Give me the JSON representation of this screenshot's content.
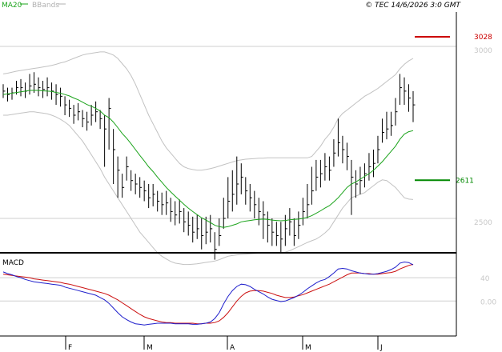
{
  "legend": [
    {
      "label": "MA20",
      "color": "#1aa31a"
    },
    {
      "label": "BBands",
      "color": "#b0b0b0"
    }
  ],
  "copyright": "© TEC 14/6/2026 3:0 GMT",
  "macd_label": "MACD",
  "colors": {
    "price": "#000000",
    "ma20": "#1aa31a",
    "bbands": "#c2c2c2",
    "resistance": "#cc0000",
    "support": "#008800",
    "macd": "#1f1fcc",
    "signal": "#cc1111",
    "axis": "#000000",
    "grid": "#cfcfcf"
  },
  "chart_data": {
    "type": "line",
    "x_ticks": [
      "F",
      "M",
      "A",
      "M",
      "J"
    ],
    "price_panel": {
      "ylim": [
        2400,
        3100
      ],
      "y_ticks": [
        {
          "value": 3000,
          "label": "3000"
        },
        {
          "value": 2500,
          "label": "2500"
        }
      ],
      "resistance": {
        "value": 3028,
        "label": "3028"
      },
      "support": {
        "value": 2611,
        "label": "2611"
      },
      "closes": [
        2870,
        2860,
        2865,
        2880,
        2880,
        2870,
        2885,
        2890,
        2880,
        2875,
        2880,
        2870,
        2860,
        2855,
        2830,
        2820,
        2800,
        2810,
        2790,
        2780,
        2800,
        2810,
        2790,
        2760,
        2820,
        2700,
        2640,
        2590,
        2650,
        2610,
        2600,
        2590,
        2580,
        2560,
        2570,
        2550,
        2540,
        2545,
        2520,
        2510,
        2520,
        2490,
        2480,
        2460,
        2470,
        2450,
        2460,
        2470,
        2410,
        2450,
        2500,
        2550,
        2570,
        2600,
        2620,
        2580,
        2560,
        2540,
        2520,
        2510,
        2480,
        2460,
        2450,
        2440,
        2470,
        2490,
        2450,
        2480,
        2520,
        2540,
        2580,
        2620,
        2630,
        2650,
        2640,
        2690,
        2720,
        2700,
        2680,
        2620,
        2600,
        2610,
        2630,
        2650,
        2660,
        2700,
        2750,
        2760,
        2770,
        2810,
        2880,
        2870,
        2850,
        2830
      ],
      "highs": [
        2890,
        2880,
        2880,
        2900,
        2905,
        2895,
        2920,
        2925,
        2910,
        2900,
        2910,
        2895,
        2890,
        2880,
        2855,
        2845,
        2830,
        2835,
        2815,
        2810,
        2830,
        2840,
        2815,
        2800,
        2850,
        2760,
        2680,
        2630,
        2680,
        2640,
        2630,
        2620,
        2610,
        2600,
        2600,
        2580,
        2575,
        2580,
        2560,
        2550,
        2555,
        2530,
        2520,
        2505,
        2510,
        2500,
        2505,
        2510,
        2460,
        2500,
        2560,
        2620,
        2640,
        2680,
        2660,
        2620,
        2600,
        2580,
        2560,
        2550,
        2520,
        2500,
        2490,
        2490,
        2510,
        2530,
        2500,
        2520,
        2560,
        2600,
        2650,
        2670,
        2670,
        2690,
        2680,
        2730,
        2790,
        2740,
        2720,
        2670,
        2640,
        2650,
        2660,
        2690,
        2700,
        2740,
        2790,
        2810,
        2810,
        2850,
        2920,
        2910,
        2890,
        2870
      ],
      "lows": [
        2850,
        2840,
        2845,
        2860,
        2855,
        2850,
        2860,
        2865,
        2855,
        2850,
        2855,
        2845,
        2830,
        2825,
        2800,
        2795,
        2775,
        2785,
        2765,
        2755,
        2770,
        2780,
        2760,
        2650,
        2700,
        2600,
        2560,
        2560,
        2610,
        2580,
        2570,
        2560,
        2550,
        2530,
        2535,
        2520,
        2510,
        2510,
        2490,
        2480,
        2485,
        2460,
        2450,
        2430,
        2440,
        2410,
        2425,
        2430,
        2380,
        2420,
        2470,
        2500,
        2520,
        2540,
        2570,
        2540,
        2520,
        2500,
        2480,
        2440,
        2430,
        2420,
        2420,
        2400,
        2420,
        2450,
        2420,
        2440,
        2480,
        2500,
        2540,
        2580,
        2590,
        2610,
        2610,
        2650,
        2680,
        2660,
        2640,
        2510,
        2560,
        2570,
        2590,
        2610,
        2620,
        2660,
        2720,
        2730,
        2740,
        2770,
        2830,
        2830,
        2810,
        2780
      ],
      "ma20": [
        2860,
        2862,
        2864,
        2866,
        2868,
        2870,
        2872,
        2872,
        2872,
        2871,
        2870,
        2869,
        2866,
        2864,
        2860,
        2856,
        2850,
        2845,
        2838,
        2831,
        2826,
        2820,
        2812,
        2800,
        2793,
        2780,
        2764,
        2747,
        2733,
        2717,
        2700,
        2683,
        2667,
        2650,
        2636,
        2620,
        2605,
        2590,
        2577,
        2565,
        2553,
        2541,
        2530,
        2520,
        2511,
        2502,
        2495,
        2488,
        2480,
        2476,
        2474,
        2476,
        2480,
        2484,
        2490,
        2492,
        2494,
        2496,
        2497,
        2498,
        2497,
        2495,
        2494,
        2493,
        2494,
        2496,
        2497,
        2498,
        2500,
        2503,
        2508,
        2515,
        2522,
        2530,
        2537,
        2548,
        2560,
        2575,
        2590,
        2600,
        2606,
        2614,
        2622,
        2630,
        2640,
        2652,
        2665,
        2680,
        2695,
        2710,
        2730,
        2745,
        2752,
        2755
      ],
      "bb_upper": [
        2920,
        2922,
        2925,
        2928,
        2930,
        2932,
        2934,
        2936,
        2938,
        2940,
        2942,
        2945,
        2948,
        2952,
        2955,
        2960,
        2965,
        2970,
        2975,
        2978,
        2980,
        2982,
        2984,
        2984,
        2980,
        2975,
        2965,
        2950,
        2935,
        2915,
        2890,
        2860,
        2830,
        2800,
        2775,
        2750,
        2725,
        2705,
        2690,
        2675,
        2660,
        2650,
        2645,
        2642,
        2640,
        2640,
        2642,
        2645,
        2648,
        2652,
        2656,
        2660,
        2664,
        2668,
        2670,
        2672,
        2673,
        2674,
        2675,
        2675,
        2676,
        2676,
        2676,
        2676,
        2676,
        2676,
        2676,
        2676,
        2676,
        2676,
        2680,
        2695,
        2710,
        2730,
        2745,
        2765,
        2790,
        2805,
        2815,
        2825,
        2835,
        2845,
        2855,
        2862,
        2870,
        2878,
        2888,
        2898,
        2908,
        2918,
        2935,
        2948,
        2958,
        2965
      ],
      "bb_lower": [
        2800,
        2800,
        2802,
        2804,
        2806,
        2808,
        2810,
        2810,
        2808,
        2806,
        2804,
        2800,
        2795,
        2788,
        2780,
        2770,
        2755,
        2740,
        2725,
        2705,
        2685,
        2665,
        2645,
        2620,
        2600,
        2580,
        2560,
        2540,
        2520,
        2500,
        2480,
        2460,
        2445,
        2430,
        2415,
        2400,
        2390,
        2382,
        2375,
        2370,
        2368,
        2366,
        2366,
        2367,
        2368,
        2370,
        2372,
        2374,
        2376,
        2380,
        2385,
        2390,
        2392,
        2394,
        2395,
        2396,
        2397,
        2398,
        2399,
        2400,
        2400,
        2400,
        2400,
        2400,
        2402,
        2406,
        2412,
        2418,
        2424,
        2430,
        2435,
        2440,
        2448,
        2458,
        2470,
        2490,
        2510,
        2530,
        2545,
        2560,
        2565,
        2570,
        2575,
        2585,
        2595,
        2605,
        2612,
        2610,
        2600,
        2590,
        2575,
        2560,
        2556,
        2555
      ]
    },
    "macd_panel": {
      "y_ticks": [
        {
          "value": 40,
          "label": "40"
        },
        {
          "value": 0,
          "label": "0.00"
        }
      ],
      "ylim": [
        -60,
        80
      ],
      "macd": [
        50,
        47,
        45,
        42,
        40,
        37,
        35,
        33,
        32,
        31,
        30,
        29,
        28,
        27,
        24,
        22,
        20,
        18,
        16,
        14,
        12,
        10,
        6,
        2,
        -4,
        -12,
        -20,
        -27,
        -32,
        -36,
        -39,
        -40,
        -41,
        -40,
        -39,
        -38,
        -38,
        -38,
        -38,
        -39,
        -39,
        -39,
        -39,
        -40,
        -40,
        -39,
        -38,
        -36,
        -30,
        -20,
        -5,
        8,
        18,
        25,
        29,
        28,
        25,
        20,
        16,
        12,
        7,
        3,
        1,
        -1,
        0,
        3,
        6,
        10,
        15,
        21,
        26,
        31,
        35,
        37,
        42,
        48,
        55,
        56,
        55,
        52,
        50,
        48,
        47,
        46,
        46,
        47,
        49,
        51,
        54,
        58,
        65,
        67,
        66,
        62
      ],
      "signal": [
        46,
        45,
        44,
        43,
        42,
        41,
        40,
        38,
        37,
        36,
        35,
        34,
        33,
        32,
        30,
        29,
        27,
        25,
        23,
        21,
        19,
        17,
        15,
        13,
        10,
        6,
        2,
        -3,
        -8,
        -13,
        -18,
        -23,
        -27,
        -30,
        -32,
        -34,
        -36,
        -37,
        -37,
        -38,
        -38,
        -38,
        -38,
        -38,
        -39,
        -39,
        -38,
        -38,
        -37,
        -34,
        -28,
        -20,
        -10,
        0,
        8,
        14,
        17,
        18,
        18,
        17,
        15,
        13,
        10,
        8,
        6,
        6,
        7,
        9,
        11,
        14,
        17,
        20,
        23,
        26,
        29,
        33,
        37,
        41,
        45,
        48,
        48,
        48,
        47,
        47,
        46,
        46,
        47,
        48,
        49,
        51,
        55,
        58,
        61,
        63
      ]
    }
  }
}
